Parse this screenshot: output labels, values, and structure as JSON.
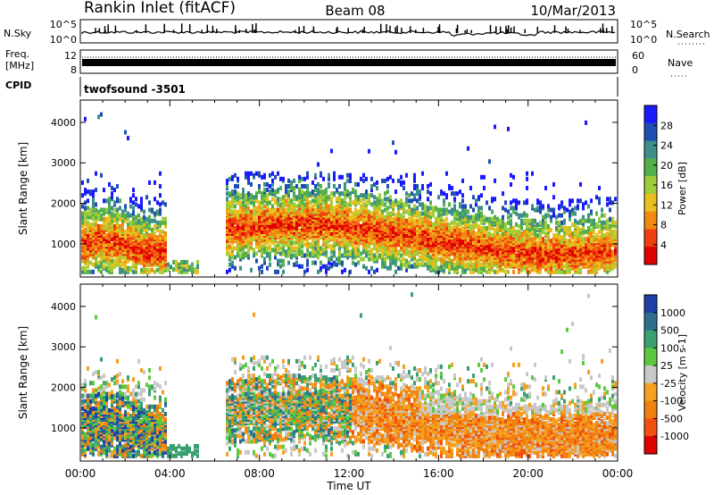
{
  "header": {
    "station": "Rankin Inlet (fitACF)",
    "beam": "Beam 08",
    "date": "10/Mar/2013"
  },
  "chart_data": [
    {
      "type": "line",
      "panel": "noise",
      "left_label": "N.Sky",
      "left_ticks": [
        "10^5",
        "10^0"
      ],
      "right_label": "N.Search",
      "right_ticks": [
        "10^5",
        "10^0"
      ]
    },
    {
      "type": "line",
      "panel": "frequency",
      "left_label_lines": [
        "Freq.",
        "[MHz]"
      ],
      "left_ticks": [
        "12",
        "8"
      ],
      "right_label": "Nave",
      "right_ticks": [
        "60",
        "0"
      ]
    },
    {
      "type": "table",
      "panel": "cpid",
      "label": "CPID",
      "text": "twofsound -3501"
    },
    {
      "type": "heatmap",
      "panel": "power",
      "xlabel": "",
      "ylabel": "Slant Range [km]",
      "ylim": [
        180,
        4550
      ],
      "y_ticks": [
        1000,
        2000,
        3000,
        4000
      ],
      "colorbar_label": "Power [dB]",
      "colorbar_ticks": [
        "28",
        "24",
        "20",
        "16",
        "12",
        "8",
        "4"
      ],
      "colors": [
        "#1a1aff",
        "#1f4fb0",
        "#3d8f8a",
        "#53b04a",
        "#9fcd3a",
        "#e8c020",
        "#f08a10",
        "#f04010",
        "#e00000"
      ]
    },
    {
      "type": "heatmap",
      "panel": "velocity",
      "xlabel": "Time UT",
      "ylabel": "Slant Range [km]",
      "ylim": [
        180,
        4550
      ],
      "y_ticks": [
        1000,
        2000,
        3000,
        4000
      ],
      "x_ticks": [
        "00:00",
        "04:00",
        "08:00",
        "12:00",
        "16:00",
        "20:00",
        "00:00"
      ],
      "colorbar_label": "Velocity [m s-1]",
      "colorbar_ticks": [
        "1000",
        "500",
        "100",
        "25",
        "-25",
        "-100",
        "-500",
        "-1000"
      ],
      "colors": [
        "#1e3ea8",
        "#2d6f8c",
        "#3aa070",
        "#5cc840",
        "#c8c8c8",
        "#f5a020",
        "#f08010",
        "#f05010",
        "#e00000"
      ]
    }
  ]
}
